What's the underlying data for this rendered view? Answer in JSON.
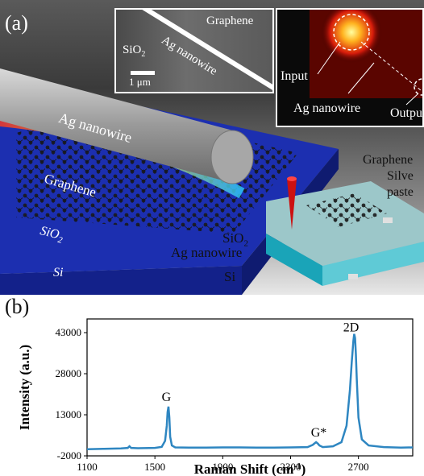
{
  "panel_a": {
    "label": "(a)",
    "sem_inset": {
      "graphene": "Graphene",
      "sio2": "SiO",
      "sio2_sub": "2",
      "nanowire": "Ag nanowire",
      "scalebar": "1 μm"
    },
    "optical_inset": {
      "input": "Input",
      "nanowire": "Ag nanowire",
      "output": "Outpu"
    },
    "schematic": {
      "nanowire": "Ag nanowire",
      "graphene": "Graphene",
      "sio2": "SiO",
      "sio2_sub": "2",
      "si": "Si"
    },
    "device": {
      "graphene": "Graphene",
      "silver_1": "Silve",
      "silver_2": "paste",
      "sio2": "SiO",
      "sio2_sub": "2",
      "nanowire": "Ag nanowire",
      "si": "Si"
    }
  },
  "panel_b": {
    "label": "(b)"
  },
  "chart_data": {
    "type": "line",
    "xlabel": "Raman Shift  (cm",
    "xlabel_sup": "-1",
    "xlabel_end": ")",
    "ylabel": "Intensity (a.u.)",
    "xlim": [
      1100,
      3020
    ],
    "ylim": [
      -2000,
      48000
    ],
    "xticks": [
      1100,
      1500,
      1900,
      2300,
      2700
    ],
    "yticks": [
      -2000,
      13000,
      28000,
      43000
    ],
    "grid": false,
    "series": [
      {
        "color": "#2e86c1",
        "x": [
          1100,
          1200,
          1300,
          1340,
          1350,
          1360,
          1400,
          1500,
          1540,
          1560,
          1570,
          1575,
          1580,
          1585,
          1590,
          1600,
          1620,
          1700,
          1800,
          1900,
          2000,
          2100,
          2200,
          2300,
          2400,
          2430,
          2450,
          2460,
          2470,
          2490,
          2550,
          2600,
          2630,
          2650,
          2660,
          2670,
          2675,
          2680,
          2685,
          2690,
          2700,
          2720,
          2760,
          2850,
          2950,
          3020
        ],
        "y": [
          400,
          600,
          750,
          900,
          1500,
          900,
          800,
          900,
          1300,
          3500,
          9000,
          14000,
          16000,
          12000,
          5000,
          1800,
          1100,
          1000,
          1000,
          1100,
          1100,
          1000,
          1000,
          1100,
          1200,
          2000,
          3000,
          2500,
          1800,
          1200,
          1500,
          3000,
          9000,
          22000,
          32000,
          40000,
          42500,
          41000,
          35000,
          26000,
          12000,
          4000,
          1800,
          1200,
          1000,
          1100
        ]
      }
    ],
    "annotations": [
      {
        "text": "G",
        "x": 1540,
        "y": 18000
      },
      {
        "text": "G*",
        "x": 2420,
        "y": 5000
      },
      {
        "text": "2D",
        "x": 2610,
        "y": 43500
      }
    ]
  }
}
